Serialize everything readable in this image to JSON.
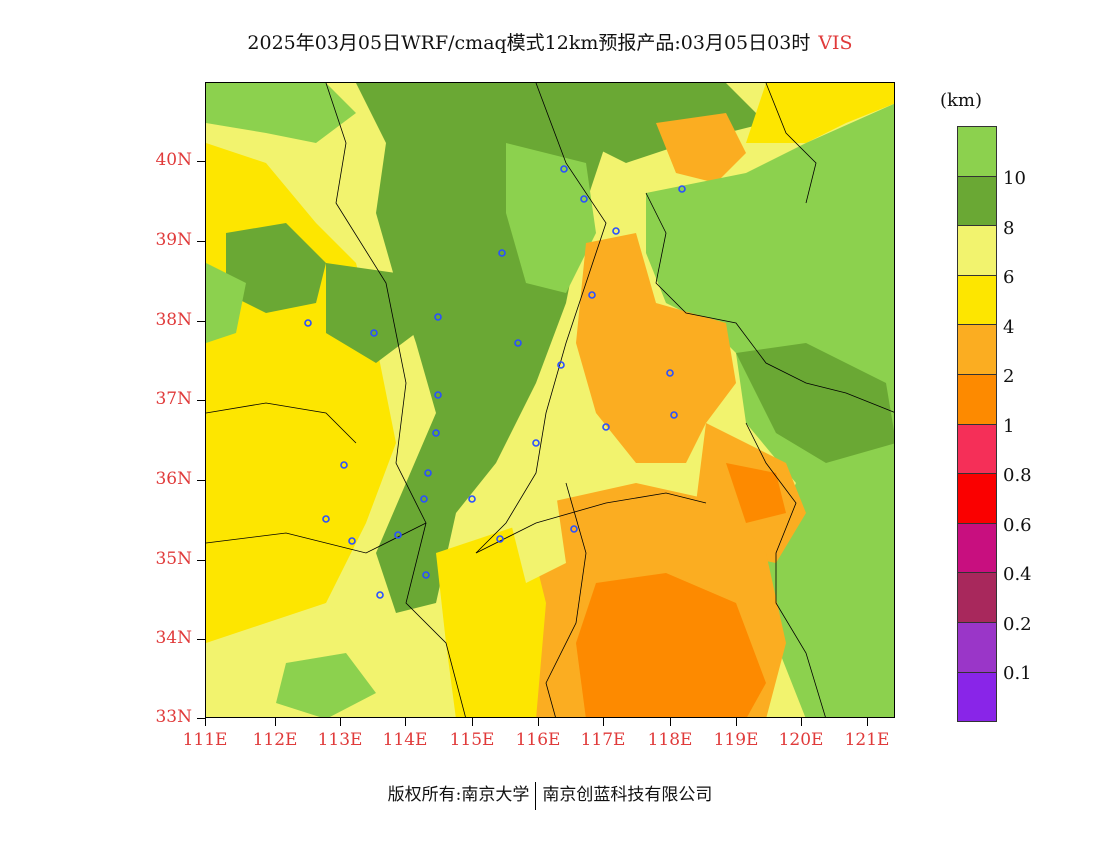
{
  "title": {
    "main": "2025年03月05日WRF/cmaq模式12km预报产品:03月05日03时",
    "variable": "VIS"
  },
  "axes": {
    "lat_labels": [
      "40N",
      "39N",
      "38N",
      "37N",
      "36N",
      "35N",
      "34N",
      "33N"
    ],
    "lon_labels": [
      "111E",
      "112E",
      "113E",
      "114E",
      "115E",
      "116E",
      "117E",
      "118E",
      "119E",
      "120E",
      "121E"
    ]
  },
  "legend": {
    "unit": "(km)",
    "colors": [
      "#8cd14e",
      "#6aa834",
      "#f2f36e",
      "#fde600",
      "#fbad21",
      "#fd8a00",
      "#f52f58",
      "#fa0000",
      "#c80f7f",
      "#a8285c",
      "#9a36c8",
      "#8925e8"
    ],
    "labels": [
      "10",
      "8",
      "6",
      "4",
      "2",
      "1",
      "0.8",
      "0.6",
      "0.4",
      "0.2",
      "0.1"
    ]
  },
  "footer": {
    "left": "版权所有:南京大学",
    "right": "南京创蓝科技有限公司"
  }
}
